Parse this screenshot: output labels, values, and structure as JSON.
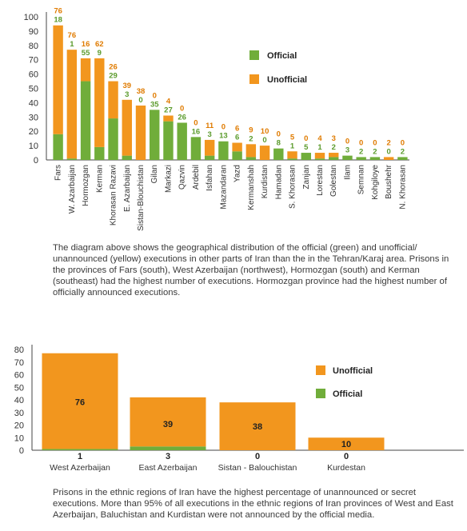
{
  "colors": {
    "official": "#70ad3a",
    "unofficial": "#f2961e",
    "axis": "#444444"
  },
  "chart_data": [
    {
      "type": "bar",
      "stacked": true,
      "categories": [
        "Fars",
        "W. Azarbaijan",
        "Hormozgan",
        "Kerman",
        "Khorasan Razavi",
        "E. Azarbaijan",
        "Sistan-Blouchistan",
        "Gilan",
        "Markazi",
        "Qazvin",
        "Ardebil",
        "Isfahan",
        "Mazandaran",
        "Yazd",
        "Kermanshah",
        "Kurdistan",
        "Hamadan",
        "S. Khorasan",
        "Zanjan",
        "Lorestan",
        "Golestan",
        "Ilam",
        "Semnan",
        "Kohgiloye",
        "Boushehr",
        "N. Khorasan"
      ],
      "series": [
        {
          "name": "Official",
          "values": [
            18,
            1,
            55,
            9,
            29,
            3,
            0,
            35,
            27,
            26,
            16,
            3,
            13,
            6,
            2,
            0,
            8,
            1,
            5,
            1,
            2,
            3,
            2,
            2,
            0,
            2
          ]
        },
        {
          "name": "Unofficial",
          "values": [
            76,
            76,
            16,
            62,
            26,
            39,
            38,
            0,
            4,
            0,
            0,
            11,
            0,
            6,
            9,
            10,
            0,
            5,
            0,
            4,
            3,
            0,
            0,
            0,
            2,
            0
          ]
        }
      ],
      "yticks": [
        0,
        10,
        20,
        30,
        40,
        50,
        60,
        70,
        80,
        90,
        100
      ],
      "ylim": [
        0,
        100
      ],
      "legend": [
        "Official",
        "Unofficial"
      ],
      "legend_position": "upper-right"
    },
    {
      "type": "bar",
      "stacked": true,
      "categories": [
        "West Azerbaijan",
        "East Azerbaijan",
        "Sistan - Balouchistan",
        "Kurdestan"
      ],
      "series": [
        {
          "name": "Unofficial",
          "values": [
            76,
            39,
            38,
            10
          ]
        },
        {
          "name": "Official",
          "values": [
            1,
            3,
            0,
            0
          ]
        }
      ],
      "yticks": [
        0,
        10,
        20,
        30,
        40,
        50,
        60,
        70,
        80
      ],
      "ylim": [
        0,
        80
      ],
      "legend": [
        "Unofficial",
        "Official"
      ],
      "legend_position": "right"
    }
  ],
  "text": {
    "paragraph1": "The diagram above shows the geographical distribution of the official (green) and unofficial/ unannounced (yellow) executions in other parts of Iran than the in the Tehran/Karaj area. Prisons in the provinces of Fars (south), West Azerbaijan (northwest), Hormozgan (south) and Kerman (southeast) had the highest number of executions. Hormozgan province had the highest number of officially announced executions.",
    "paragraph2": "Prisons in the ethnic regions of Iran have the highest percentage of unannounced or secret executions. More than 95% of all executions in the ethnic regions of Iran provinces of West and East Azerbaijan, Baluchistan and Kurdistan were not announced by the official media."
  }
}
